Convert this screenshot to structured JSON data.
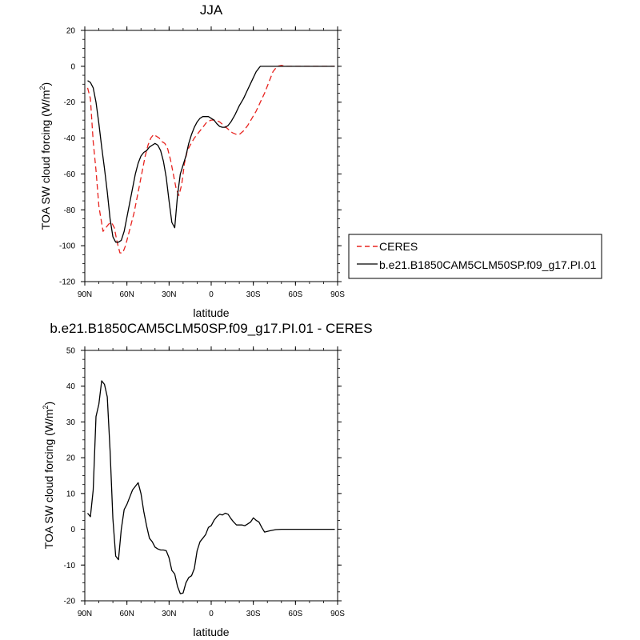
{
  "chart_data": [
    {
      "type": "line",
      "title": "JJA",
      "xlabel": "latitude",
      "ylabel_main": "TOA SW cloud forcing (W/m",
      "ylabel_sup": "2",
      "ylabel_close": ")",
      "xlim": [
        90,
        -90
      ],
      "ylim": [
        -120,
        20
      ],
      "x_ticks": [
        90,
        60,
        30,
        0,
        -30,
        -60,
        -90
      ],
      "x_tick_labels": [
        "90N",
        "60N",
        "30N",
        "0",
        "30S",
        "60S",
        "90S"
      ],
      "y_ticks": [
        20,
        0,
        -20,
        -40,
        -60,
        -80,
        -100,
        -120
      ],
      "y_tick_labels": [
        "20",
        "0",
        "-20",
        "-40",
        "-60",
        "-80",
        "-100",
        "-120"
      ],
      "legend_position": "right",
      "series": [
        {
          "name": "CERES",
          "color": "#e8231f",
          "dash": "dashed",
          "points": [
            [
              88,
              -12
            ],
            [
              86,
              -18
            ],
            [
              84,
              -42
            ],
            [
              82,
              -58
            ],
            [
              80,
              -78
            ],
            [
              77,
              -92
            ],
            [
              75,
              -90
            ],
            [
              73,
              -88
            ],
            [
              71,
              -87
            ],
            [
              69,
              -90
            ],
            [
              67,
              -98
            ],
            [
              65,
              -104
            ],
            [
              63,
              -104
            ],
            [
              61,
              -100
            ],
            [
              59,
              -94
            ],
            [
              57,
              -88
            ],
            [
              55,
              -82
            ],
            [
              53,
              -74
            ],
            [
              51,
              -66
            ],
            [
              49,
              -58
            ],
            [
              47,
              -50
            ],
            [
              45,
              -44
            ],
            [
              43,
              -40
            ],
            [
              41,
              -38
            ],
            [
              39,
              -39
            ],
            [
              37,
              -40
            ],
            [
              35,
              -42
            ],
            [
              33,
              -43
            ],
            [
              31,
              -46
            ],
            [
              29,
              -52
            ],
            [
              27,
              -60
            ],
            [
              25,
              -68
            ],
            [
              23,
              -72
            ],
            [
              21,
              -66
            ],
            [
              19,
              -54
            ],
            [
              17,
              -47
            ],
            [
              15,
              -44
            ],
            [
              12,
              -40
            ],
            [
              9,
              -37
            ],
            [
              6,
              -34
            ],
            [
              3,
              -31
            ],
            [
              0,
              -30
            ],
            [
              -3,
              -30
            ],
            [
              -6,
              -31
            ],
            [
              -9,
              -33
            ],
            [
              -12,
              -35
            ],
            [
              -15,
              -37
            ],
            [
              -18,
              -38
            ],
            [
              -20,
              -38
            ],
            [
              -23,
              -36
            ],
            [
              -26,
              -33
            ],
            [
              -29,
              -29
            ],
            [
              -32,
              -25
            ],
            [
              -35,
              -20
            ],
            [
              -38,
              -15
            ],
            [
              -41,
              -9
            ],
            [
              -44,
              -3
            ],
            [
              -47,
              0
            ],
            [
              -50,
              0.5
            ],
            [
              -53,
              0
            ],
            [
              -60,
              0
            ],
            [
              -70,
              0
            ],
            [
              -80,
              0
            ],
            [
              -88,
              0
            ]
          ]
        },
        {
          "name": "b.e21.B1850CAM5CLM50SP.f09_g17.PI.01",
          "color": "#000000",
          "dash": "solid",
          "points": [
            [
              88,
              -8
            ],
            [
              86,
              -9
            ],
            [
              84,
              -12
            ],
            [
              82,
              -20
            ],
            [
              80,
              -32
            ],
            [
              78,
              -45
            ],
            [
              76,
              -57
            ],
            [
              74,
              -70
            ],
            [
              72,
              -85
            ],
            [
              70,
              -95
            ],
            [
              68,
              -98
            ],
            [
              66,
              -98
            ],
            [
              64,
              -97
            ],
            [
              62,
              -92
            ],
            [
              60,
              -84
            ],
            [
              58,
              -76
            ],
            [
              56,
              -68
            ],
            [
              54,
              -60
            ],
            [
              52,
              -54
            ],
            [
              50,
              -50
            ],
            [
              48,
              -48
            ],
            [
              46,
              -47
            ],
            [
              44,
              -45
            ],
            [
              42,
              -44
            ],
            [
              40,
              -43
            ],
            [
              38,
              -44
            ],
            [
              36,
              -47
            ],
            [
              34,
              -53
            ],
            [
              32,
              -62
            ],
            [
              30,
              -75
            ],
            [
              28,
              -87
            ],
            [
              26,
              -90
            ],
            [
              24,
              -72
            ],
            [
              22,
              -60
            ],
            [
              20,
              -55
            ],
            [
              18,
              -50
            ],
            [
              16,
              -43
            ],
            [
              14,
              -38
            ],
            [
              12,
              -34
            ],
            [
              10,
              -31
            ],
            [
              8,
              -29
            ],
            [
              6,
              -28
            ],
            [
              4,
              -28
            ],
            [
              2,
              -28
            ],
            [
              0,
              -29
            ],
            [
              -2,
              -30
            ],
            [
              -4,
              -32
            ],
            [
              -6,
              -33.5
            ],
            [
              -8,
              -34
            ],
            [
              -10,
              -34
            ],
            [
              -12,
              -33
            ],
            [
              -14,
              -31
            ],
            [
              -17,
              -27
            ],
            [
              -20,
              -22
            ],
            [
              -23,
              -18
            ],
            [
              -26,
              -13
            ],
            [
              -29,
              -8
            ],
            [
              -32,
              -3
            ],
            [
              -35,
              0
            ],
            [
              -38,
              0
            ],
            [
              -45,
              0
            ],
            [
              -55,
              0
            ],
            [
              -70,
              0
            ],
            [
              -88,
              0
            ]
          ]
        }
      ]
    },
    {
      "type": "line",
      "title": "b.e21.B1850CAM5CLM50SP.f09_g17.PI.01 - CERES",
      "xlabel": "latitude",
      "ylabel_main": "TOA SW cloud forcing (W/m",
      "ylabel_sup": "2",
      "ylabel_close": ")",
      "xlim": [
        90,
        -90
      ],
      "ylim": [
        -20,
        50
      ],
      "x_ticks": [
        90,
        60,
        30,
        0,
        -30,
        -60,
        -90
      ],
      "x_tick_labels": [
        "90N",
        "60N",
        "30N",
        "0",
        "30S",
        "60S",
        "90S"
      ],
      "y_ticks": [
        50,
        40,
        30,
        20,
        10,
        0,
        -10,
        -20
      ],
      "y_tick_labels": [
        "50",
        "40",
        "30",
        "20",
        "10",
        "0",
        "-10",
        "-20"
      ],
      "series": [
        {
          "color": "#000000",
          "dash": "solid",
          "points": [
            [
              88,
              4.5
            ],
            [
              86,
              3.5
            ],
            [
              84,
              11
            ],
            [
              82,
              31.5
            ],
            [
              80,
              35
            ],
            [
              78,
              41.5
            ],
            [
              76,
              40.5
            ],
            [
              74,
              37
            ],
            [
              72,
              22
            ],
            [
              70,
              3
            ],
            [
              68,
              -7.5
            ],
            [
              66,
              -8.5
            ],
            [
              64,
              0
            ],
            [
              62,
              5.5
            ],
            [
              60,
              7
            ],
            [
              58,
              9
            ],
            [
              56,
              11
            ],
            [
              54,
              12
            ],
            [
              52,
              13
            ],
            [
              50,
              10
            ],
            [
              48,
              5
            ],
            [
              46,
              1
            ],
            [
              44,
              -2.5
            ],
            [
              42,
              -3.5
            ],
            [
              40,
              -5
            ],
            [
              38,
              -5.5
            ],
            [
              36,
              -5.8
            ],
            [
              34,
              -5.8
            ],
            [
              32,
              -6
            ],
            [
              30,
              -8
            ],
            [
              28,
              -11.5
            ],
            [
              26,
              -12.5
            ],
            [
              24,
              -16
            ],
            [
              22,
              -18
            ],
            [
              20,
              -17.8
            ],
            [
              18,
              -15
            ],
            [
              16,
              -13.5
            ],
            [
              14,
              -13
            ],
            [
              12,
              -11
            ],
            [
              10,
              -6
            ],
            [
              8,
              -3.5
            ],
            [
              6,
              -2.5
            ],
            [
              4,
              -1.5
            ],
            [
              2,
              0.5
            ],
            [
              0,
              1
            ],
            [
              -2,
              2.5
            ],
            [
              -4,
              3.5
            ],
            [
              -6,
              4.2
            ],
            [
              -8,
              4
            ],
            [
              -10,
              4.5
            ],
            [
              -12,
              4.2
            ],
            [
              -14,
              3
            ],
            [
              -16,
              2
            ],
            [
              -18,
              1.2
            ],
            [
              -20,
              1.2
            ],
            [
              -22,
              1.2
            ],
            [
              -24,
              1
            ],
            [
              -26,
              1.5
            ],
            [
              -28,
              2
            ],
            [
              -30,
              3.2
            ],
            [
              -32,
              2.5
            ],
            [
              -34,
              2
            ],
            [
              -36,
              0.5
            ],
            [
              -38,
              -0.8
            ],
            [
              -42,
              -0.4
            ],
            [
              -46,
              -0.1
            ],
            [
              -50,
              0
            ],
            [
              -60,
              0
            ],
            [
              -70,
              0
            ],
            [
              -80,
              0
            ],
            [
              -88,
              0
            ]
          ]
        }
      ]
    }
  ]
}
